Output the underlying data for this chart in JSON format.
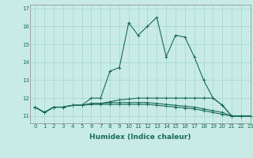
{
  "xlabel": "Humidex (Indice chaleur)",
  "background_color": "#c8ebe5",
  "grid_color": "#a0d8cc",
  "line_color": "#1a6b5a",
  "xlim": [
    -0.5,
    23
  ],
  "ylim": [
    10.6,
    17.2
  ],
  "yticks": [
    11,
    12,
    13,
    14,
    15,
    16,
    17
  ],
  "xticks": [
    0,
    1,
    2,
    3,
    4,
    5,
    6,
    7,
    8,
    9,
    10,
    11,
    12,
    13,
    14,
    15,
    16,
    17,
    18,
    19,
    20,
    21,
    22,
    23
  ],
  "series": [
    [
      11.5,
      11.2,
      11.5,
      11.5,
      11.6,
      11.6,
      12.0,
      12.0,
      13.5,
      13.7,
      16.2,
      15.5,
      16.0,
      16.5,
      14.3,
      15.5,
      15.4,
      14.3,
      13.0,
      12.0,
      11.6,
      11.0,
      11.0,
      11.0
    ],
    [
      11.5,
      11.2,
      11.5,
      11.5,
      11.6,
      11.6,
      11.7,
      11.7,
      11.8,
      11.9,
      11.95,
      12.0,
      12.0,
      12.0,
      12.0,
      12.0,
      12.0,
      12.0,
      12.0,
      12.0,
      11.6,
      11.0,
      11.0,
      11.0
    ],
    [
      11.5,
      11.2,
      11.5,
      11.5,
      11.6,
      11.6,
      11.7,
      11.7,
      11.75,
      11.75,
      11.75,
      11.75,
      11.75,
      11.7,
      11.65,
      11.6,
      11.55,
      11.5,
      11.4,
      11.3,
      11.2,
      11.0,
      11.0,
      11.0
    ],
    [
      11.5,
      11.2,
      11.5,
      11.5,
      11.6,
      11.6,
      11.65,
      11.65,
      11.65,
      11.65,
      11.65,
      11.65,
      11.65,
      11.6,
      11.55,
      11.5,
      11.45,
      11.4,
      11.3,
      11.2,
      11.1,
      11.0,
      11.0,
      11.0
    ]
  ],
  "marker": "+",
  "markersize": 3,
  "linewidth": 0.8,
  "tick_fontsize": 5,
  "xlabel_fontsize": 6.5
}
